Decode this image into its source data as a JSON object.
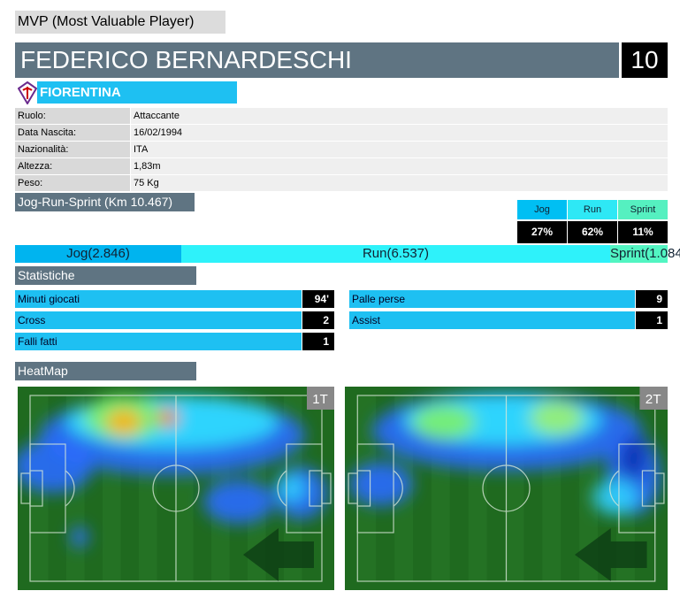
{
  "header": {
    "title": "MVP (Most Valuable Player)"
  },
  "player": {
    "name": "FEDERICO BERNARDESCHI",
    "number": "10",
    "team": "FIORENTINA"
  },
  "info": [
    {
      "label": "Ruolo:",
      "value": "Attaccante"
    },
    {
      "label": "Data Nascita:",
      "value": "16/02/1994"
    },
    {
      "label": "Nazionalità:",
      "value": "ITA"
    },
    {
      "label": "Altezza:",
      "value": "1,83m"
    },
    {
      "label": "Peso:",
      "value": "75 Kg"
    }
  ],
  "jrs": {
    "title": "Jog-Run-Sprint (Km 10.467)",
    "headers": [
      "Jog",
      "Run",
      "Sprint"
    ],
    "percent": [
      "27%",
      "62%",
      "11%"
    ],
    "bar": [
      "Jog(2.846)",
      "Run(6.537)",
      "Sprint(1.084)"
    ]
  },
  "stats": {
    "title": "Statistiche",
    "left": [
      {
        "label": "Minuti giocati",
        "value": "94'"
      },
      {
        "label": "Cross",
        "value": "2"
      },
      {
        "label": "Falli fatti",
        "value": "1"
      }
    ],
    "right": [
      {
        "label": "Palle perse",
        "value": "9"
      },
      {
        "label": "Assist",
        "value": "1"
      }
    ]
  },
  "heatmap": {
    "title": "HeatMap",
    "halves": [
      "1T",
      "2T"
    ]
  }
}
